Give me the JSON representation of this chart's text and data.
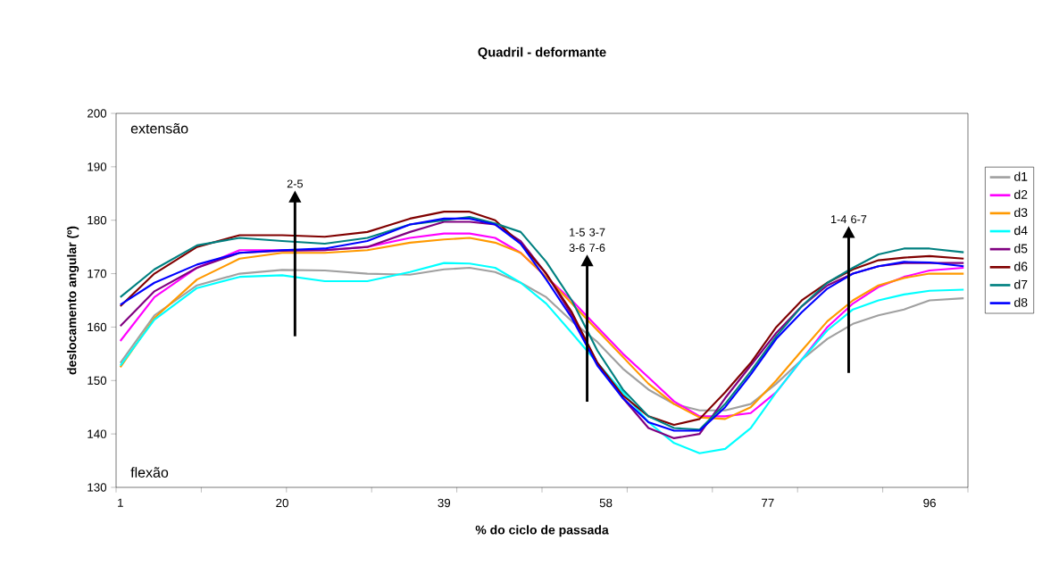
{
  "chart_data": {
    "type": "line",
    "title": "Quadril - deformante",
    "xlabel": "% do ciclo de passada",
    "ylabel": "deslocamento angular (º)",
    "x": [
      1,
      5,
      10,
      15,
      20,
      25,
      30,
      35,
      39,
      42,
      45,
      48,
      51,
      54,
      57,
      60,
      63,
      66,
      69,
      72,
      75,
      78,
      81,
      84,
      87,
      90,
      93,
      96,
      100
    ],
    "series": [
      {
        "name": "d1",
        "color": "#a0a0a0",
        "values": [
          153.3,
          162.2,
          167.8,
          170,
          170.7,
          170.6,
          170,
          169.8,
          170.8,
          171.1,
          170.3,
          168.3,
          165.6,
          161.1,
          157.2,
          152.2,
          148.3,
          145.6,
          144.4,
          144.4,
          145.6,
          149.4,
          153.9,
          157.8,
          160.6,
          162.2,
          163.3,
          165,
          165.4
        ]
      },
      {
        "name": "d2",
        "color": "#ff00ff",
        "values": [
          157.4,
          165.6,
          171.1,
          174.4,
          174.4,
          174.4,
          175,
          176.7,
          177.5,
          177.5,
          176.7,
          173.9,
          169.4,
          165,
          160,
          155,
          150.6,
          146.1,
          143.3,
          143.3,
          143.9,
          147.8,
          153.9,
          160,
          164.4,
          167.5,
          169.4,
          170.6,
          171.1
        ]
      },
      {
        "name": "d3",
        "color": "#ff9900",
        "values": [
          152.5,
          161.7,
          168.9,
          172.8,
          173.9,
          173.9,
          174.4,
          175.8,
          176.4,
          176.7,
          175.8,
          173.9,
          169.4,
          164.4,
          159.4,
          154.4,
          149.4,
          145.6,
          143.1,
          142.8,
          145,
          150,
          155.6,
          161.1,
          165,
          167.8,
          169.2,
          170,
          170
        ]
      },
      {
        "name": "d4",
        "color": "#00ffff",
        "values": [
          152.8,
          161.4,
          167.3,
          169.4,
          169.7,
          168.6,
          168.6,
          170.3,
          172,
          171.9,
          171.1,
          168.3,
          164.4,
          158.9,
          153.3,
          147.8,
          142.2,
          138.3,
          136.4,
          137.2,
          141.1,
          147.8,
          153.9,
          159.4,
          163.3,
          165,
          166.1,
          166.8,
          167
        ]
      },
      {
        "name": "d5",
        "color": "#800080",
        "values": [
          160.2,
          166.7,
          171.1,
          173.9,
          174.3,
          174.4,
          175,
          177.8,
          179.7,
          179.7,
          179.2,
          176.1,
          170,
          162.2,
          153.3,
          146.7,
          141.1,
          139.2,
          140,
          146.7,
          152.8,
          158.9,
          163.9,
          167.8,
          170,
          171.4,
          172,
          172,
          172
        ]
      },
      {
        "name": "d6",
        "color": "#800000",
        "values": [
          163.9,
          170,
          175,
          177.2,
          177.2,
          176.9,
          177.8,
          180.3,
          181.6,
          181.6,
          180,
          175.6,
          170,
          162.8,
          153.3,
          147.2,
          143.3,
          141.7,
          142.8,
          147.8,
          153.3,
          160,
          165,
          168.3,
          170.8,
          172.5,
          173,
          173.3,
          172.8
        ]
      },
      {
        "name": "d7",
        "color": "#008080",
        "values": [
          165.6,
          170.8,
          175.3,
          176.7,
          176.1,
          175.6,
          176.7,
          179.2,
          180,
          180.6,
          179.4,
          177.8,
          172.2,
          165,
          155.6,
          148.3,
          143.3,
          141.1,
          140.8,
          145.6,
          151.7,
          158.3,
          163.9,
          168.3,
          171.1,
          173.6,
          174.7,
          174.7,
          174
        ]
      },
      {
        "name": "d8",
        "color": "#0000ff",
        "values": [
          164.2,
          168.3,
          171.7,
          173.9,
          174.4,
          174.7,
          176.1,
          179.2,
          180.3,
          180.3,
          179.2,
          175.6,
          168.9,
          161.7,
          152.8,
          146.7,
          142.2,
          140.6,
          140.6,
          145,
          151.1,
          157.8,
          162.8,
          167.2,
          170,
          171.4,
          172.2,
          172.1,
          171.4
        ]
      }
    ],
    "xlim": [
      0.5,
      100.5
    ],
    "xticks": [
      {
        "value": 0.5,
        "label": null
      },
      {
        "value": 10.5,
        "label": null
      },
      {
        "value": 20.5,
        "label": null
      },
      {
        "value": 30.5,
        "label": null
      },
      {
        "value": 40.5,
        "label": null
      },
      {
        "value": 50.5,
        "label": null
      },
      {
        "value": 60.5,
        "label": null
      },
      {
        "value": 70.5,
        "label": null
      },
      {
        "value": 80.5,
        "label": null
      },
      {
        "value": 90.5,
        "label": null
      },
      {
        "value": 100.5,
        "label": null
      },
      1,
      20,
      39,
      58,
      77,
      96
    ],
    "ylim": [
      130,
      200
    ],
    "yticks": [
      130,
      140,
      150,
      160,
      170,
      180,
      190,
      200
    ],
    "annotations": [
      "extensão",
      "flexão",
      "2-5",
      "1-5 3-7 3-6 7-6",
      "1-4 6-7"
    ],
    "grid": false,
    "legend": "right",
    "marker": "none",
    "line_style": "solid"
  }
}
